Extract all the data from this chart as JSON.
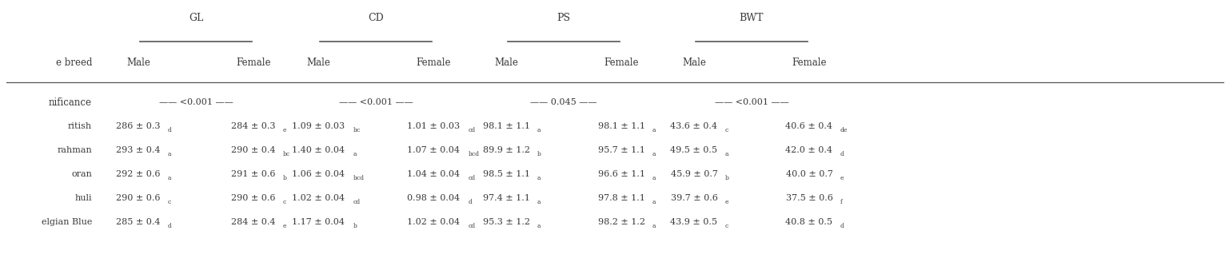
{
  "col_header_groups": [
    "GL",
    "CD",
    "PS",
    "BWT"
  ],
  "row_header": "e breed",
  "significance_label": "nificance",
  "significance_values": [
    "<0.001",
    "<0.001",
    "0.045",
    "<0.001"
  ],
  "breeds": [
    "ritish",
    "rahman",
    "oran",
    "huli",
    "elgian Blue"
  ],
  "cells": [
    [
      "286 ± 0.3",
      "d",
      "284 ± 0.3",
      "e",
      "1.09 ± 0.03",
      "bc",
      "1.01 ± 0.03",
      "cd",
      "98.1 ± 1.1",
      "a",
      "98.1 ± 1.1",
      "a",
      "43.6 ± 0.4",
      "c",
      "40.6 ± 0.4",
      "de"
    ],
    [
      "293 ± 0.4",
      "a",
      "290 ± 0.4",
      "bc",
      "1.40 ± 0.04",
      "a",
      "1.07 ± 0.04",
      "bcd",
      "89.9 ± 1.2",
      "b",
      "95.7 ± 1.1",
      "a",
      "49.5 ± 0.5",
      "a",
      "42.0 ± 0.4",
      "d"
    ],
    [
      "292 ± 0.6",
      "a",
      "291 ± 0.6",
      "b",
      "1.06 ± 0.04",
      "bcd",
      "1.04 ± 0.04",
      "cd",
      "98.5 ± 1.1",
      "a",
      "96.6 ± 1.1",
      "a",
      "45.9 ± 0.7",
      "b",
      "40.0 ± 0.7",
      "e"
    ],
    [
      "290 ± 0.6",
      "c",
      "290 ± 0.6",
      "c",
      "1.02 ± 0.04",
      "cd",
      "0.98 ± 0.04",
      "d",
      "97.4 ± 1.1",
      "a",
      "97.8 ± 1.1",
      "a",
      "39.7 ± 0.6",
      "e",
      "37.5 ± 0.6",
      "f"
    ],
    [
      "285 ± 0.4",
      "d",
      "284 ± 0.4",
      "e",
      "1.17 ± 0.04",
      "b",
      "1.02 ± 0.04",
      "cd",
      "95.3 ± 1.2",
      "a",
      "98.2 ± 1.2",
      "a",
      "43.9 ± 0.5",
      "c",
      "40.8 ± 0.5",
      "d"
    ]
  ],
  "bg_color": "#ffffff",
  "text_color": "#3a3a3a",
  "line_color": "#555555",
  "font_size": 8.0,
  "header_font_size": 9.0,
  "subheader_font_size": 8.5
}
